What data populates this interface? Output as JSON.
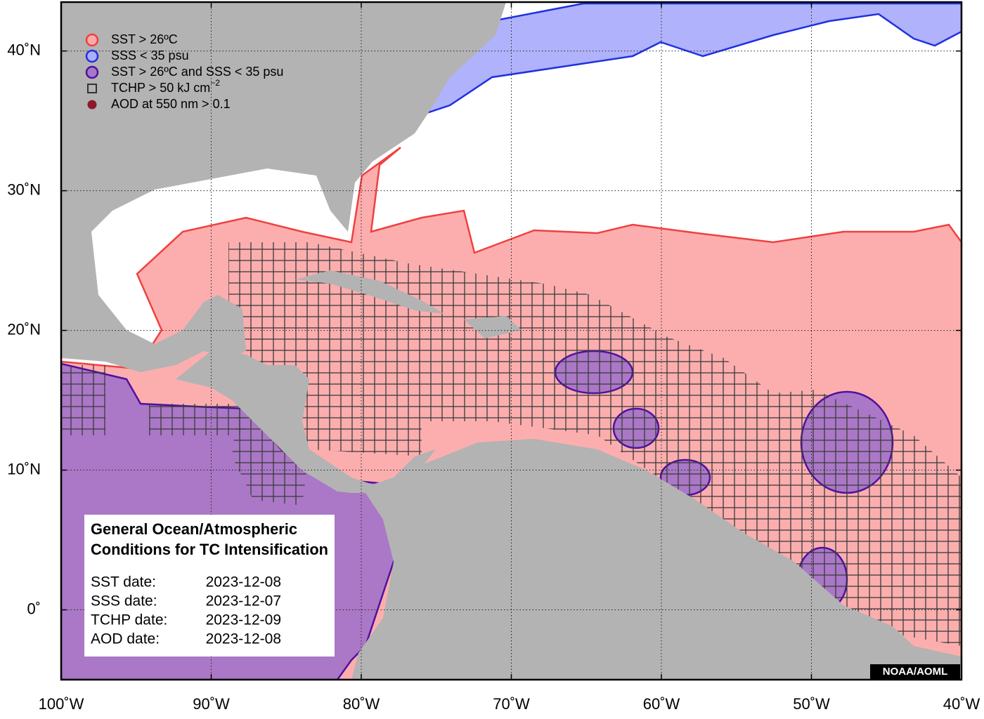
{
  "map": {
    "xlim": [
      -100,
      -40
    ],
    "ylim": [
      -5,
      43.5
    ],
    "grid": true,
    "xticks": [
      {
        "value": -100,
        "label": "100˚W"
      },
      {
        "value": -90,
        "label": "90˚W"
      },
      {
        "value": -80,
        "label": "80˚W"
      },
      {
        "value": -70,
        "label": "70˚W"
      },
      {
        "value": -60,
        "label": "60˚W"
      },
      {
        "value": -50,
        "label": "50˚W"
      },
      {
        "value": -40,
        "label": "40˚W"
      }
    ],
    "yticks": [
      {
        "value": 0,
        "label": "0˚"
      },
      {
        "value": 10,
        "label": "10˚N"
      },
      {
        "value": 20,
        "label": "20˚N"
      },
      {
        "value": 30,
        "label": "30˚N"
      },
      {
        "value": 40,
        "label": "40˚N"
      }
    ],
    "legend": [
      {
        "label": "SST > 26ºC",
        "marker": "circle",
        "fill": "#f9aaaa",
        "stroke": "#f04040"
      },
      {
        "label": "SSS < 35 psu",
        "marker": "circle",
        "fill": "#aab0f8",
        "stroke": "#2030e0"
      },
      {
        "label": "SST > 26ºC and SSS < 35 psu",
        "marker": "circle",
        "fill": "#a878c8",
        "stroke": "#5010a0"
      },
      {
        "label": "TCHP > 50 kJ cm",
        "superscript": "−2",
        "marker": "square",
        "fill": "none",
        "stroke": "#333333"
      },
      {
        "label": "AOD at 550 nm > 0.1",
        "marker": "dot",
        "fill": "#8b1a2a",
        "stroke": "#8b1a2a"
      }
    ],
    "info_title": [
      "General Ocean/Atmospheric",
      "Conditions for TC Intensification"
    ],
    "dates": [
      {
        "label": "SST date:",
        "value": "2023-12-08"
      },
      {
        "label": "SSS date:",
        "value": "2023-12-07"
      },
      {
        "label": "TCHP date:",
        "value": "2023-12-09"
      },
      {
        "label": "AOD date:",
        "value": "2023-12-08"
      }
    ],
    "credit": "NOAA/AOML"
  }
}
